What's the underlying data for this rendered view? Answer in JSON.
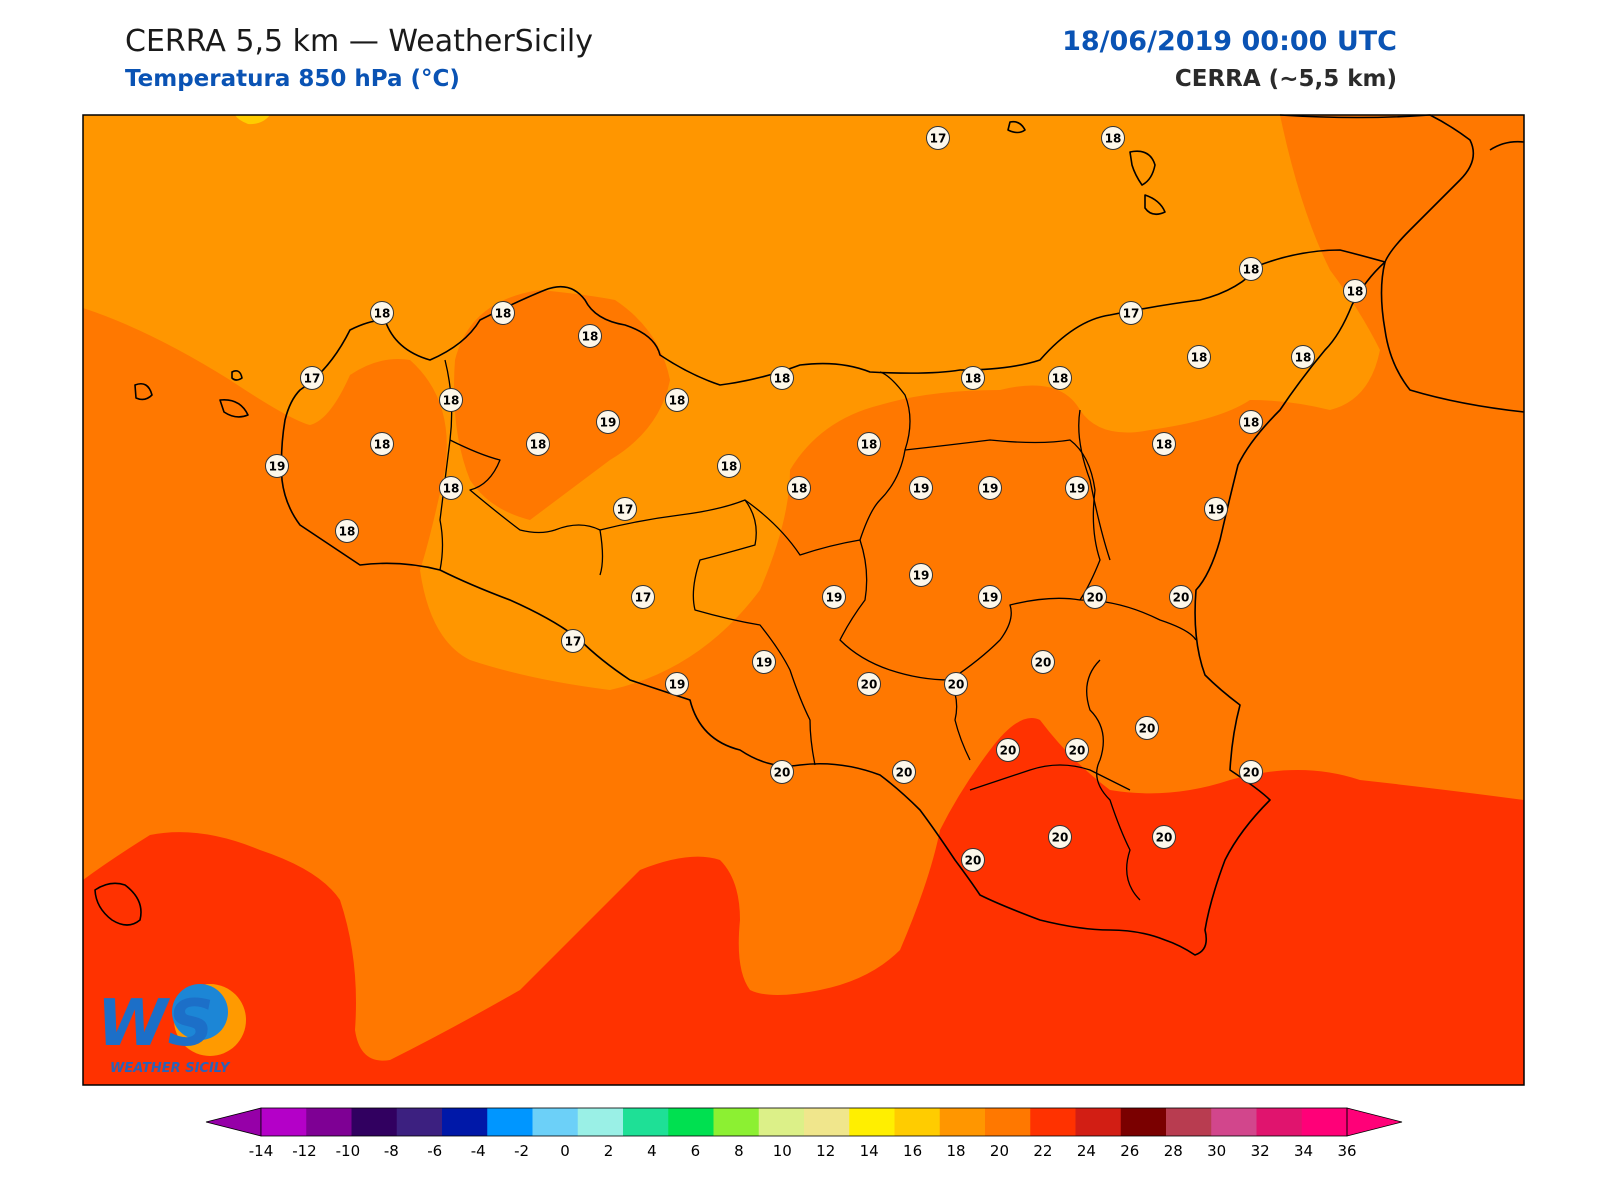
{
  "header": {
    "title": "CERRA 5,5 km — WeatherSicily",
    "subtitle": "Temperatura 850 hPa (°C)",
    "datetime": "18/06/2019 00:00 UTC",
    "model": "CERRA (~5,5 km)"
  },
  "map": {
    "region": "Sicily",
    "variable": "Temperature 850 hPa",
    "unit": "°C",
    "fill_colors": {
      "16-18": "#ff9600",
      "18-20": "#ff7800",
      "20-22": "#ff3200",
      "14-16": "#ffcc00"
    }
  },
  "station_labels": [
    {
      "value": "17"
    },
    {
      "value": "18"
    },
    {
      "value": "18"
    },
    {
      "value": "18"
    },
    {
      "value": "18"
    },
    {
      "value": "17"
    },
    {
      "value": "18"
    },
    {
      "value": "18"
    },
    {
      "value": "17"
    },
    {
      "value": "18"
    },
    {
      "value": "18"
    },
    {
      "value": "18"
    },
    {
      "value": "18"
    },
    {
      "value": "18"
    },
    {
      "value": "18"
    },
    {
      "value": "19"
    },
    {
      "value": "18"
    },
    {
      "value": "18"
    },
    {
      "value": "18"
    },
    {
      "value": "18"
    },
    {
      "value": "19"
    },
    {
      "value": "18"
    },
    {
      "value": "17"
    },
    {
      "value": "18"
    },
    {
      "value": "18"
    },
    {
      "value": "19"
    },
    {
      "value": "19"
    },
    {
      "value": "18"
    },
    {
      "value": "19"
    },
    {
      "value": "18"
    },
    {
      "value": "18"
    },
    {
      "value": "17"
    },
    {
      "value": "19"
    },
    {
      "value": "19"
    },
    {
      "value": "19"
    },
    {
      "value": "20"
    },
    {
      "value": "20"
    },
    {
      "value": "17"
    },
    {
      "value": "19"
    },
    {
      "value": "19"
    },
    {
      "value": "19"
    },
    {
      "value": "20"
    },
    {
      "value": "20"
    },
    {
      "value": "20"
    },
    {
      "value": "20"
    },
    {
      "value": "20"
    },
    {
      "value": "20"
    },
    {
      "value": "20"
    },
    {
      "value": "20"
    },
    {
      "value": "20"
    },
    {
      "value": "20"
    },
    {
      "value": "20"
    },
    {
      "value": "20"
    }
  ],
  "colorbar": {
    "ticks": [
      "-14",
      "-12",
      "-10",
      "-8",
      "-6",
      "-4",
      "-2",
      "0",
      "2",
      "4",
      "6",
      "8",
      "10",
      "12",
      "14",
      "16",
      "18",
      "20",
      "22",
      "24",
      "26",
      "28",
      "30",
      "32",
      "34",
      "36"
    ],
    "colors": [
      "#b400c8",
      "#7e0094",
      "#310060",
      "#3c2080",
      "#0018a8",
      "#0096ff",
      "#6cd0f8",
      "#9af0e6",
      "#1ee096",
      "#00e050",
      "#8cf032",
      "#dcf088",
      "#f0e68c",
      "#ffef00",
      "#ffcc00",
      "#ff9600",
      "#ff7800",
      "#ff3200",
      "#d21e14",
      "#7a0000",
      "#b83c50",
      "#d2468c",
      "#e0146e",
      "#ff0078"
    ],
    "under_color": "#9600a8",
    "over_color": "#ff0078"
  },
  "logo": {
    "mark": "WS",
    "name": "WEATHER SICILY"
  }
}
